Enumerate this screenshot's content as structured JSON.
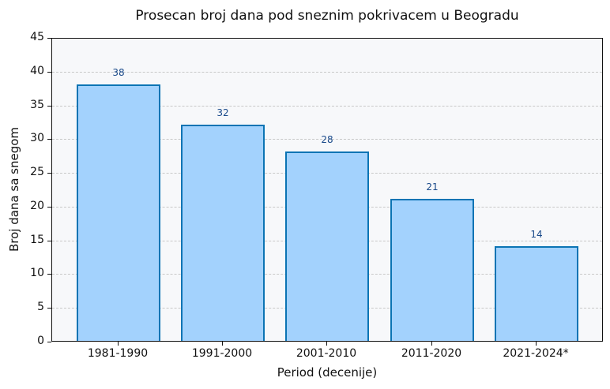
{
  "chart_data": {
    "type": "bar",
    "title": "Prosecan broj dana pod sneznim pokrivacem u Beogradu",
    "xlabel": "Period (decenije)",
    "ylabel": "Broj dana sa snegom",
    "categories": [
      "1981-1990",
      "1991-2000",
      "2001-2010",
      "2011-2020",
      "2021-2024*"
    ],
    "values": [
      38,
      32,
      28,
      21,
      14
    ],
    "data_labels": [
      "38",
      "32",
      "28",
      "21",
      "14"
    ],
    "ylim": [
      0,
      45
    ],
    "yticks": [
      "0",
      "5",
      "10",
      "15",
      "20",
      "25",
      "30",
      "35",
      "40",
      "45"
    ],
    "grid": "y-dashed",
    "legend": "none",
    "colors": {
      "bar_fill": "#a3d2fd",
      "bar_edge": "#0b74b4",
      "label_text": "#1a4a8a",
      "plot_background": "#f7f8fa"
    }
  }
}
